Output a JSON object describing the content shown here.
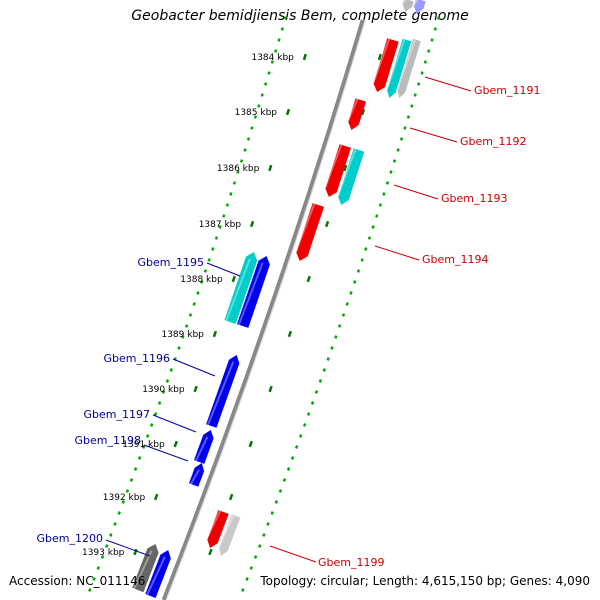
{
  "header": {
    "title": "Geobacter bemidjiensis Bem, complete genome"
  },
  "footer": {
    "accession": "Accession: NC_011146",
    "topology": "Topology: circular; Length: 4,615,150 bp; Genes: 4,090"
  },
  "colors": {
    "forward_gene": "#0000ee",
    "reverse_gene": "#ee0000",
    "cyan_feature": "#00cccc",
    "gray_feature": "#888888",
    "backbone": "#888888",
    "tick_dotted": "#00aa00",
    "tick_major": "#007700",
    "forward_label": "#000099",
    "reverse_label": "#cc0000"
  },
  "ticks": [
    "1384 kbp",
    "1385 kbp",
    "1386 kbp",
    "1387 kbp",
    "1388 kbp",
    "1389 kbp",
    "1390 kbp",
    "1391 kbp",
    "1392 kbp",
    "1393 kbp"
  ],
  "genes": [
    {
      "label": "Gbem_1191",
      "strand": "reverse",
      "color": "#ee0000"
    },
    {
      "label": "Gbem_1192",
      "strand": "reverse",
      "color": "#ee0000"
    },
    {
      "label": "Gbem_1193",
      "strand": "reverse",
      "color": "#ee0000"
    },
    {
      "label": "Gbem_1194",
      "strand": "reverse",
      "color": "#ee0000"
    },
    {
      "label": "Gbem_1195",
      "strand": "forward",
      "color": "#0000ee"
    },
    {
      "label": "Gbem_1196",
      "strand": "forward",
      "color": "#0000ee"
    },
    {
      "label": "Gbem_1197",
      "strand": "forward",
      "color": "#0000ee"
    },
    {
      "label": "Gbem_1198",
      "strand": "forward",
      "color": "#0000ee"
    },
    {
      "label": "Gbem_1199",
      "strand": "reverse",
      "color": "#ee0000"
    },
    {
      "label": "Gbem_1200",
      "strand": "forward",
      "color": "#0000ee"
    }
  ]
}
